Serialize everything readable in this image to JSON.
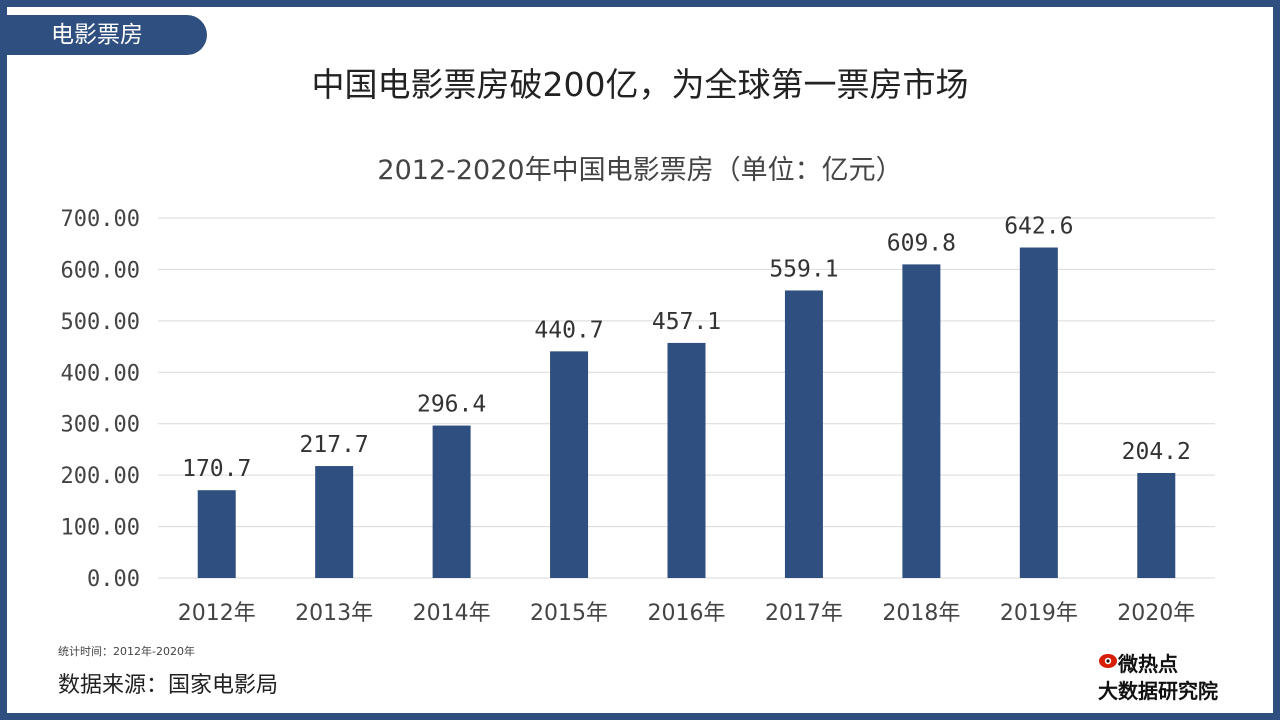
{
  "tag": "电影票房",
  "headline": "中国电影票房破200亿，为全球第一票房市场",
  "footer": {
    "note": "统计时间：2012年-2020年",
    "source": "数据来源：国家电影局"
  },
  "logo": {
    "line1": "微热点",
    "line2": "大数据研究院"
  },
  "colors": {
    "accent": "#2e4f7f",
    "bar": "#2e4f7f",
    "grid": "#d9d9d9"
  },
  "chart_data": {
    "type": "bar",
    "title": "2012-2020年中国电影票房（单位：亿元）",
    "categories": [
      "2012年",
      "2013年",
      "2014年",
      "2015年",
      "2016年",
      "2017年",
      "2018年",
      "2019年",
      "2020年"
    ],
    "values": [
      170.7,
      217.7,
      296.4,
      440.7,
      457.1,
      559.1,
      609.8,
      642.6,
      204.2
    ],
    "data_labels": [
      "170.7",
      "217.7",
      "296.4",
      "440.7",
      "457.1",
      "559.1",
      "609.8",
      "642.6",
      "204.2"
    ],
    "yticks": [
      "0.00",
      "100.00",
      "200.00",
      "300.00",
      "400.00",
      "500.00",
      "600.00",
      "700.00"
    ],
    "ylim": [
      0,
      700
    ],
    "grid": true,
    "legend": "none"
  }
}
